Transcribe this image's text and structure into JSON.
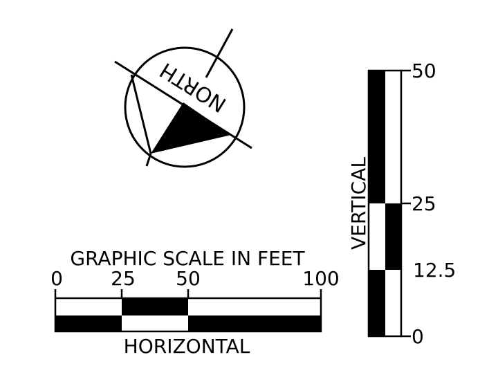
{
  "north_arrow": {
    "label": "NORTH"
  },
  "horizontal_scale": {
    "title": "GRAPHIC SCALE IN FEET",
    "ticks": [
      "0",
      "25",
      "50",
      "100"
    ],
    "label": "HORIZONTAL"
  },
  "vertical_scale": {
    "label": "VERTICAL",
    "ticks": [
      "50",
      "25",
      "12.5",
      "0"
    ]
  }
}
